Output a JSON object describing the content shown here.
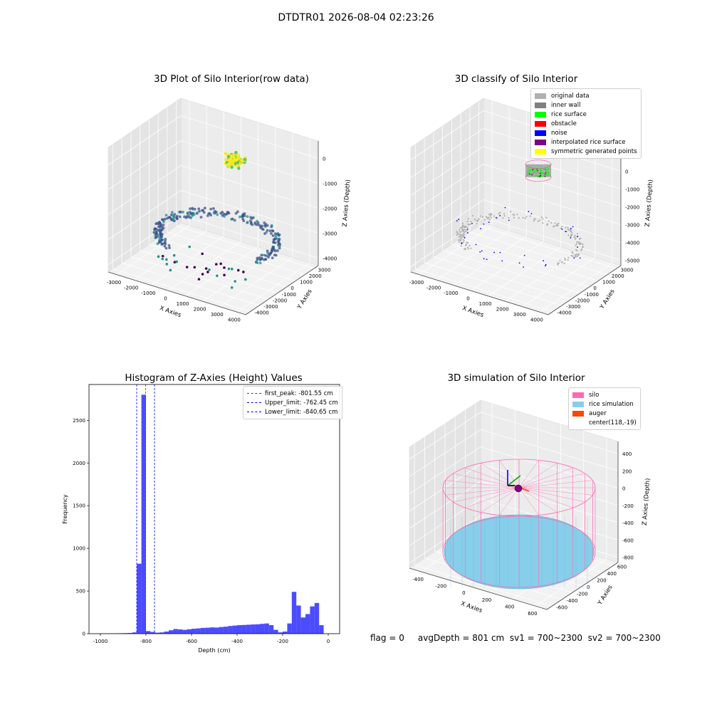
{
  "figure": {
    "suptitle": "DTDTR01 2026-08-04 02:23:26",
    "status_line": "flag = 0     avgDepth = 801 cm  sv1 = 700~2300  sv2 = 700~2300"
  },
  "chart_data": [
    {
      "type": "scatter",
      "title": "3D Plot of Silo Interior(row data)",
      "xlabel": "X Axies",
      "ylabel": "Y Axies",
      "zlabel": "Z Axies (Depth)",
      "x_ticks": [
        "-3000",
        "-2000",
        "-1000",
        "0",
        "1000",
        "2000",
        "3000",
        "4000"
      ],
      "y_ticks": [
        "-4000",
        "-3000",
        "-2000",
        "-1000",
        "0",
        "1000",
        "2000",
        "3000"
      ],
      "z_ticks": [
        "-4000",
        "-3000",
        "-2000",
        "-1000",
        "0"
      ],
      "colormap": [
        "#440154",
        "#3b528b",
        "#21918c",
        "#5ec962",
        "#fde725"
      ],
      "grid": true
    },
    {
      "type": "scatter",
      "title": "3D classify of Silo Interior",
      "xlabel": "X Axies",
      "ylabel": "Y Axies",
      "zlabel": "Z Axies (Depth)",
      "x_ticks": [
        "-3000",
        "-2000",
        "-1000",
        "0",
        "1000",
        "2000",
        "3000",
        "4000"
      ],
      "y_ticks": [
        "-4000",
        "-3000",
        "-2000",
        "-1000",
        "0",
        "1000",
        "2000",
        "3000"
      ],
      "z_ticks": [
        "-5000",
        "-4000",
        "-3000",
        "-2000",
        "-1000",
        "0",
        "1000"
      ],
      "legend": [
        {
          "label": "original data",
          "color": "#b0b0b0"
        },
        {
          "label": "inner wall",
          "color": "#808080"
        },
        {
          "label": "rice surface",
          "color": "#00ff00"
        },
        {
          "label": "obstacle",
          "color": "#ff0000"
        },
        {
          "label": "noise",
          "color": "#0000ff"
        },
        {
          "label": "interpolated rice surface",
          "color": "#800080"
        },
        {
          "label": "symmetric generated points",
          "color": "#ffff00"
        }
      ],
      "legend_position": "top-right",
      "grid": true
    },
    {
      "type": "bar",
      "title": "Histogram of Z-Axies (Height) Values",
      "xlabel": "Depth (cm)",
      "ylabel": "Frequency",
      "xlim": [
        -1050,
        50
      ],
      "ylim": [
        0,
        2920
      ],
      "x_ticks": [
        -1000,
        -800,
        -600,
        -400,
        -200,
        0
      ],
      "y_ticks": [
        0,
        500,
        1000,
        1500,
        2000,
        2500
      ],
      "bin_width": 20,
      "bins": [
        {
          "x": -1000,
          "value": 2
        },
        {
          "x": -980,
          "value": 2
        },
        {
          "x": -960,
          "value": 3
        },
        {
          "x": -940,
          "value": 3
        },
        {
          "x": -920,
          "value": 4
        },
        {
          "x": -900,
          "value": 5
        },
        {
          "x": -880,
          "value": 6
        },
        {
          "x": -860,
          "value": 8
        },
        {
          "x": -840,
          "value": 15
        },
        {
          "x": -820,
          "value": 820
        },
        {
          "x": -800,
          "value": 2800
        },
        {
          "x": -780,
          "value": 30
        },
        {
          "x": -760,
          "value": 20
        },
        {
          "x": -740,
          "value": 12
        },
        {
          "x": -720,
          "value": 15
        },
        {
          "x": -700,
          "value": 25
        },
        {
          "x": -680,
          "value": 40
        },
        {
          "x": -660,
          "value": 55
        },
        {
          "x": -640,
          "value": 50
        },
        {
          "x": -620,
          "value": 45
        },
        {
          "x": -600,
          "value": 52
        },
        {
          "x": -580,
          "value": 58
        },
        {
          "x": -560,
          "value": 62
        },
        {
          "x": -540,
          "value": 68
        },
        {
          "x": -520,
          "value": 70
        },
        {
          "x": -500,
          "value": 74
        },
        {
          "x": -480,
          "value": 72
        },
        {
          "x": -460,
          "value": 78
        },
        {
          "x": -440,
          "value": 82
        },
        {
          "x": -420,
          "value": 90
        },
        {
          "x": -400,
          "value": 95
        },
        {
          "x": -380,
          "value": 100
        },
        {
          "x": -360,
          "value": 102
        },
        {
          "x": -340,
          "value": 105
        },
        {
          "x": -320,
          "value": 108
        },
        {
          "x": -300,
          "value": 110
        },
        {
          "x": -280,
          "value": 115
        },
        {
          "x": -260,
          "value": 120
        },
        {
          "x": -240,
          "value": 100
        },
        {
          "x": -220,
          "value": 45
        },
        {
          "x": -200,
          "value": 15
        },
        {
          "x": -180,
          "value": 25
        },
        {
          "x": -160,
          "value": 120
        },
        {
          "x": -140,
          "value": 490
        },
        {
          "x": -120,
          "value": 330
        },
        {
          "x": -100,
          "value": 190
        },
        {
          "x": -80,
          "value": 230
        },
        {
          "x": -60,
          "value": 320
        },
        {
          "x": -40,
          "value": 360
        },
        {
          "x": -20,
          "value": 100
        }
      ],
      "lines": [
        {
          "label": "first_peak: -801.55 cm",
          "x": -801.55,
          "color": "#ff0000"
        },
        {
          "label": "Upper_limit: -762.45 cm",
          "x": -762.45,
          "color": "#0000ff"
        },
        {
          "label": "Lower_limit: -840.65 cm",
          "x": -840.65,
          "color": "#0000ff"
        }
      ],
      "bar_color": "#0000ff",
      "legend_position": "top-right",
      "grid": false
    },
    {
      "type": "scatter",
      "title": "3D simulation of Silo Interior",
      "xlabel": "X Axies",
      "ylabel": "Y Axies",
      "zlabel": "Z Axies (Depth)",
      "x_ticks": [
        "-400",
        "-200",
        "0",
        "200",
        "400",
        "600"
      ],
      "y_ticks": [
        "-600",
        "-400",
        "-200",
        "0",
        "200",
        "400",
        "600"
      ],
      "z_ticks": [
        "-800",
        "-600",
        "-400",
        "-200",
        "0",
        "200",
        "400"
      ],
      "legend": [
        {
          "label": "silo",
          "color": "#ff69b4"
        },
        {
          "label": "rice simulation",
          "color": "#87ceeb"
        },
        {
          "label": "auger",
          "color": "#ff4500"
        },
        {
          "label": "center(118,-19)",
          "color": ""
        }
      ],
      "legend_position": "top-right",
      "grid": true
    }
  ]
}
